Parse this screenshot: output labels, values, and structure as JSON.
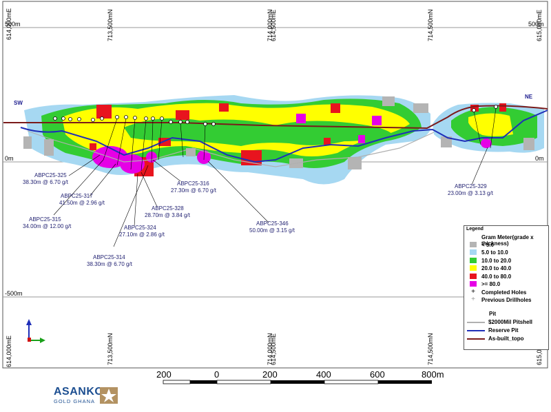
{
  "coords": {
    "top_left": "614,000mE",
    "top_1": "713,500mN",
    "top_2a": "714,000mN",
    "top_2b": "614,500mE",
    "top_3": "714,500mN",
    "top_right": "615,000mE",
    "bottom_left": "614,000mE",
    "bottom_1": "713,500mN",
    "bottom_2a": "714,000mN",
    "bottom_2b": "614,500mE",
    "bottom_3": "714,500mN",
    "bottom_right": "615,000mE",
    "elev_500": "500m",
    "elev_0": "0m",
    "elev_m500": "-500m"
  },
  "orientation": {
    "left": "SW",
    "right": "NE"
  },
  "holes": [
    {
      "name": "ABPC25-325",
      "result": "38.30m @ 6.70 g/t"
    },
    {
      "name": "ABPC25-317",
      "result": "41.50m @ 2.96 g/t"
    },
    {
      "name": "ABPC25-315",
      "result": "34.00m @ 12.00 g/t"
    },
    {
      "name": "ABPC25-316",
      "result": "27.30m @ 6.70 g/t"
    },
    {
      "name": "ABPC25-328",
      "result": "28.70m @ 3.84 g/t"
    },
    {
      "name": "ABPC25-324",
      "result": "27.10m @ 2.86 g/t"
    },
    {
      "name": "ABPC25-314",
      "result": "38.30m @ 6.70 g/t"
    },
    {
      "name": "ABPC25-346",
      "result": "50.00m @ 3.15 g/t"
    },
    {
      "name": "ABPC25-329",
      "result": "23.00m @ 3.13 g/t"
    }
  ],
  "legend": {
    "title": "Legend",
    "subtitle": "Gram Meter(grade x thickness)",
    "classes": [
      {
        "label": "< 5.0",
        "color": "#b4b4b4"
      },
      {
        "label": "5.0 to 10.0",
        "color": "#a6d8f2"
      },
      {
        "label": "10.0 to 20.0",
        "color": "#33cc33"
      },
      {
        "label": "20.0 to 40.0",
        "color": "#ffff00"
      },
      {
        "label": "40.0 to 80.0",
        "color": "#e8141e"
      },
      {
        "label": ">= 80.0",
        "color": "#e600e6"
      }
    ],
    "completed_holes": "Completed Holes",
    "previous_drillholes": "Previous Drillholes",
    "pit_title": "Pit",
    "pit_lines": [
      {
        "label": "$2000Mil Pitshell",
        "color": "#b0b0b0"
      },
      {
        "label": "Reserve Pit",
        "color": "#1f2fb8"
      },
      {
        "label": "As-built_topo",
        "color": "#7a1a1a"
      }
    ]
  },
  "scale_bar": {
    "ticks": [
      "200",
      "0",
      "200",
      "400",
      "600",
      "800m"
    ]
  },
  "logo": {
    "name": "ASANKO",
    "sub": "GOLD GHANA"
  }
}
